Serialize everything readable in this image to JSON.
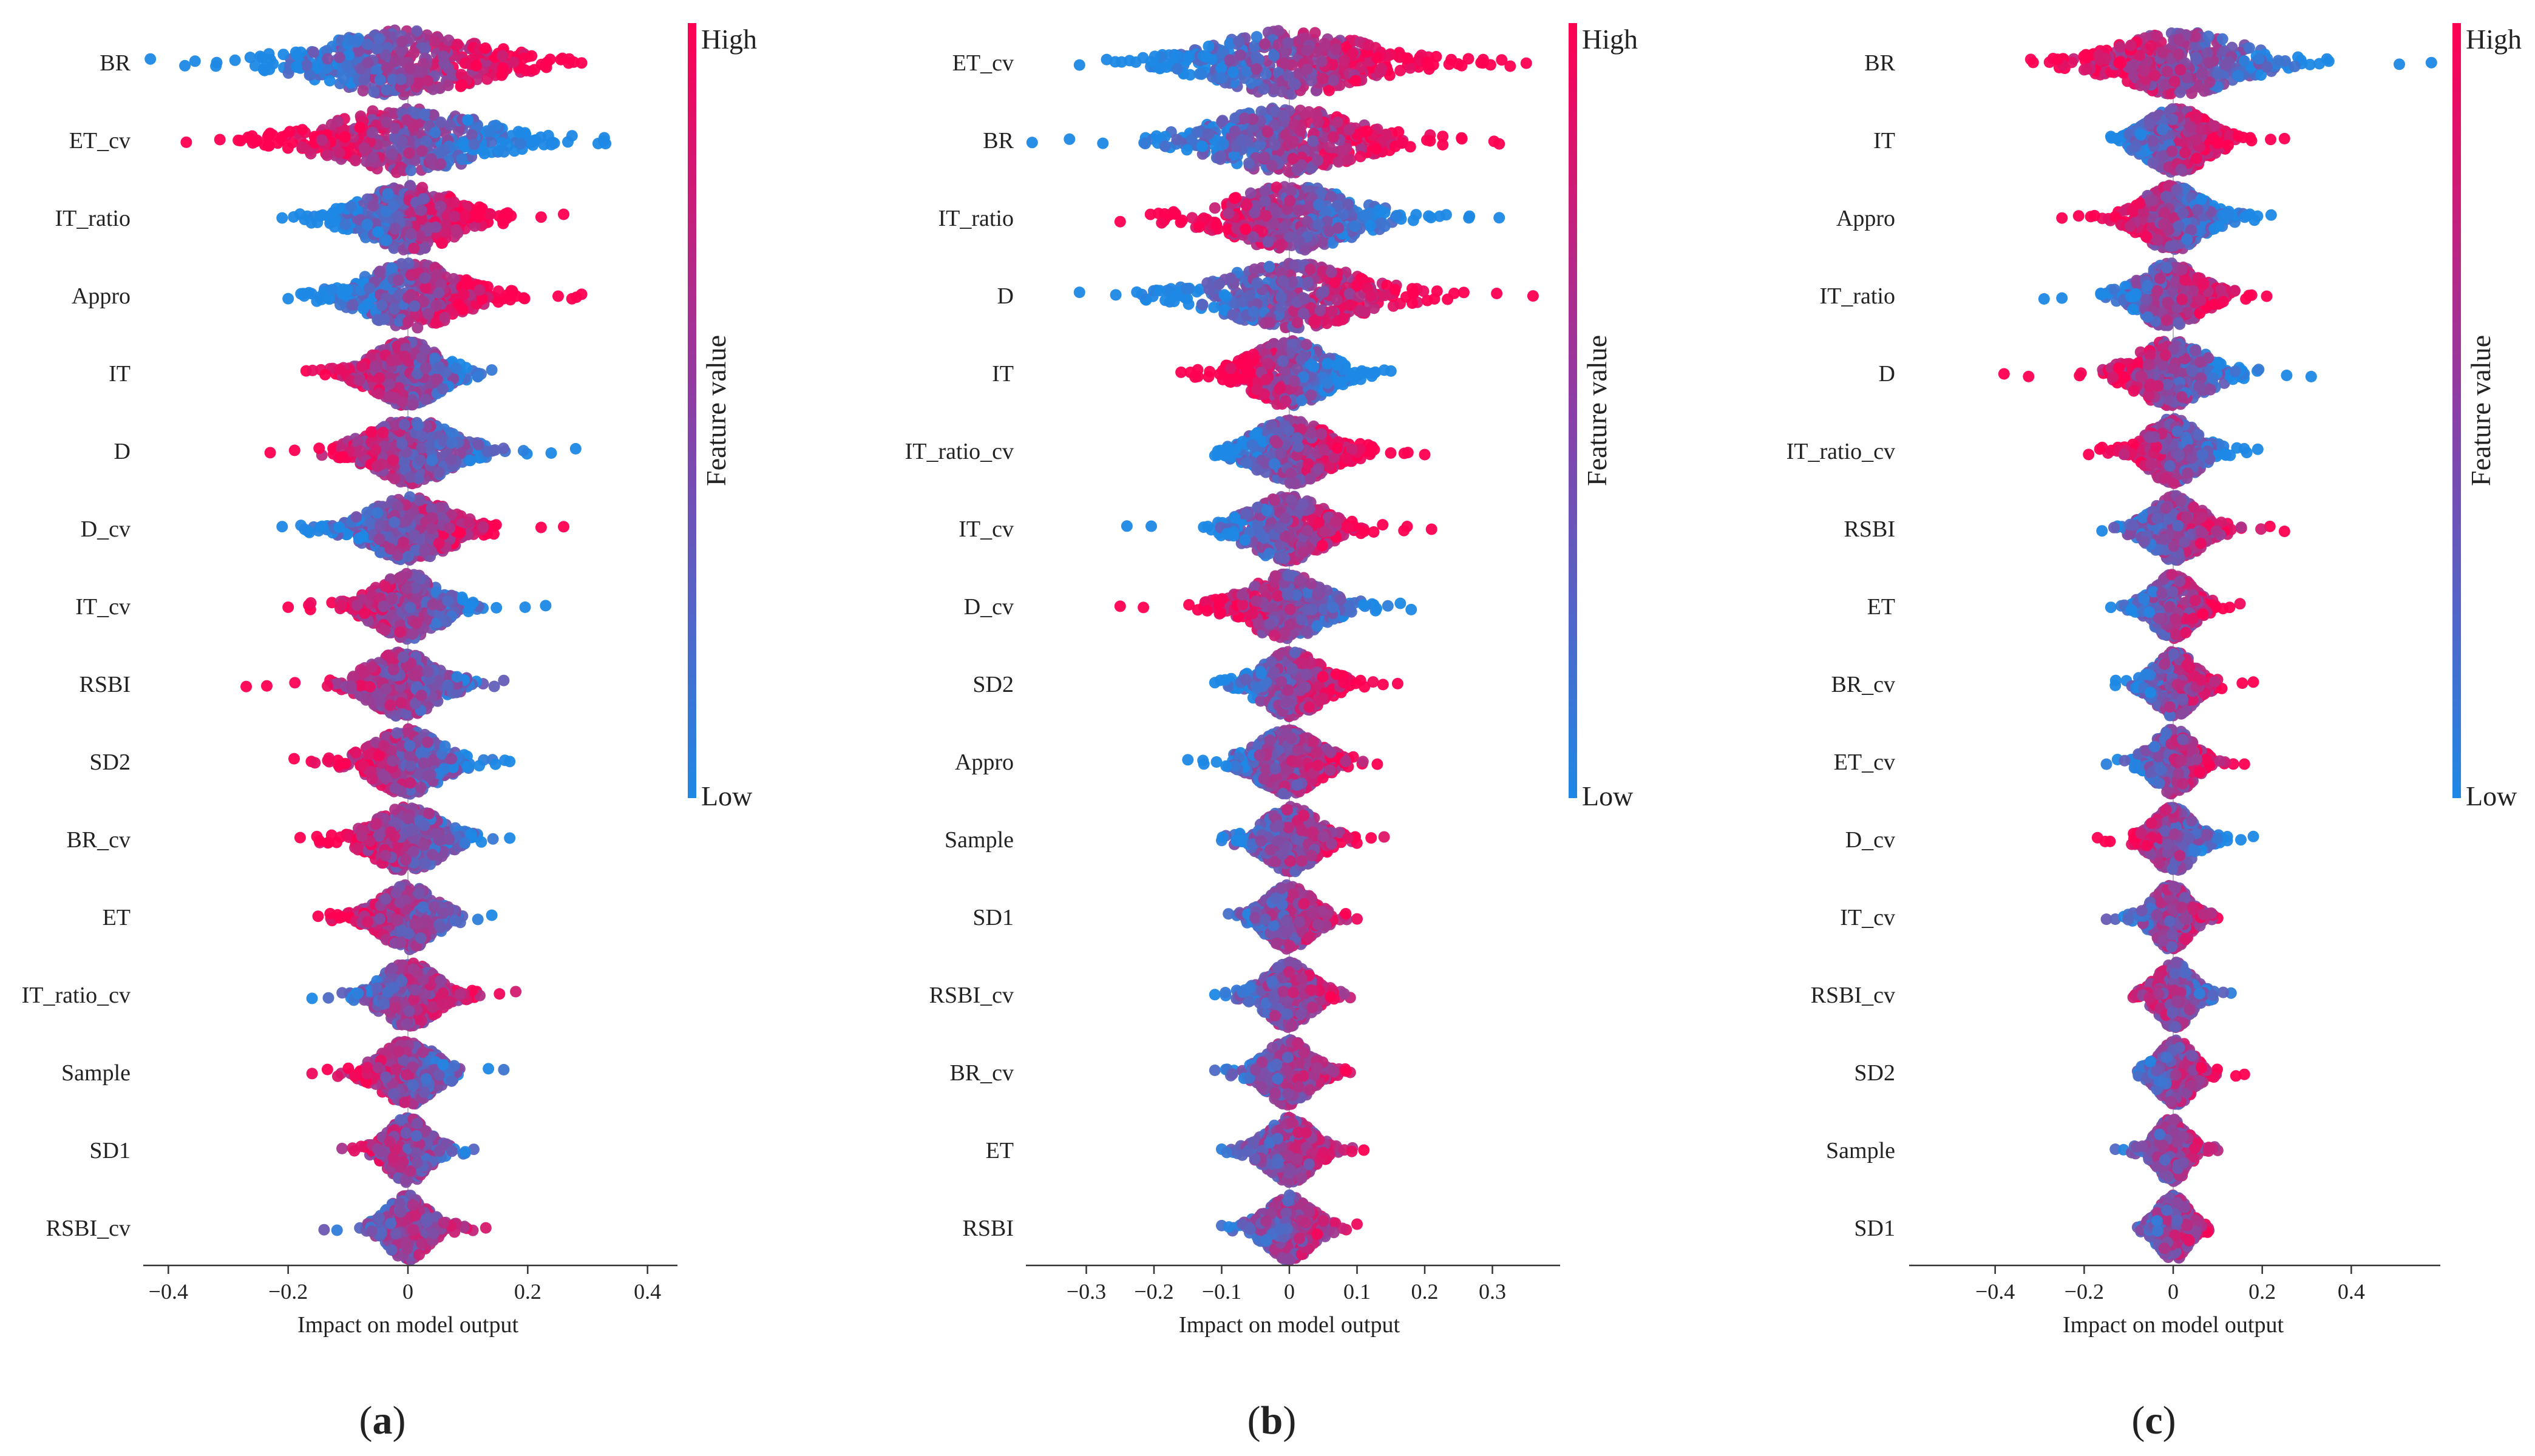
{
  "colors": {
    "high": "#ff0052",
    "low": "#1e88e5"
  },
  "colorbar": {
    "high_label": "High",
    "low_label": "Low",
    "title": "Feature value"
  },
  "chart_data": [
    {
      "type": "scatter",
      "subtype": "shap-beeswarm",
      "panel_label": "a",
      "xlabel": "Impact on model output",
      "xlim": [
        -0.45,
        0.45
      ],
      "xticks": [
        -0.4,
        -0.2,
        0,
        0.2,
        0.4
      ],
      "xtick_labels": [
        "−0.4",
        "−0.2",
        "0",
        "0.2",
        "0.4"
      ],
      "features": [
        {
          "name": "BR",
          "min": -0.43,
          "max": 0.29,
          "spread": 0.12,
          "trend": 1
        },
        {
          "name": "ET_cv",
          "min": -0.37,
          "max": 0.33,
          "spread": 0.11,
          "trend": -1
        },
        {
          "name": "IT_ratio",
          "min": -0.21,
          "max": 0.26,
          "spread": 0.07,
          "trend": 1
        },
        {
          "name": "Appro",
          "min": -0.2,
          "max": 0.29,
          "spread": 0.07,
          "trend": 1
        },
        {
          "name": "IT",
          "min": -0.17,
          "max": 0.14,
          "spread": 0.05,
          "trend": -0.5
        },
        {
          "name": "D",
          "min": -0.23,
          "max": 0.28,
          "spread": 0.06,
          "trend": -0.7
        },
        {
          "name": "D_cv",
          "min": -0.21,
          "max": 0.26,
          "spread": 0.06,
          "trend": 0.8
        },
        {
          "name": "IT_cv",
          "min": -0.2,
          "max": 0.23,
          "spread": 0.05,
          "trend": -0.8
        },
        {
          "name": "RSBI",
          "min": -0.27,
          "max": 0.16,
          "spread": 0.05,
          "trend": -0.6
        },
        {
          "name": "SD2",
          "min": -0.19,
          "max": 0.17,
          "spread": 0.05,
          "trend": -0.6
        },
        {
          "name": "BR_cv",
          "min": -0.18,
          "max": 0.17,
          "spread": 0.05,
          "trend": -0.6
        },
        {
          "name": "ET",
          "min": -0.15,
          "max": 0.14,
          "spread": 0.04,
          "trend": -0.5
        },
        {
          "name": "IT_ratio_cv",
          "min": -0.16,
          "max": 0.18,
          "spread": 0.04,
          "trend": 0.5
        },
        {
          "name": "Sample",
          "min": -0.16,
          "max": 0.16,
          "spread": 0.04,
          "trend": -0.5
        },
        {
          "name": "SD1",
          "min": -0.11,
          "max": 0.11,
          "spread": 0.03,
          "trend": -0.3
        },
        {
          "name": "RSBI_cv",
          "min": -0.14,
          "max": 0.13,
          "spread": 0.03,
          "trend": 0.3
        }
      ]
    },
    {
      "type": "scatter",
      "subtype": "shap-beeswarm",
      "panel_label": "b",
      "xlabel": "Impact on model output",
      "xlim": [
        -0.38,
        0.4
      ],
      "xticks": [
        -0.3,
        -0.2,
        -0.1,
        0,
        0.1,
        0.2,
        0.3
      ],
      "xtick_labels": [
        "−0.3",
        "−0.2",
        "−0.1",
        "0",
        "0.1",
        "0.2",
        "0.3"
      ],
      "features": [
        {
          "name": "ET_cv",
          "min": -0.31,
          "max": 0.35,
          "spread": 0.1,
          "trend": 1
        },
        {
          "name": "BR",
          "min": -0.38,
          "max": 0.31,
          "spread": 0.09,
          "trend": 1
        },
        {
          "name": "IT_ratio",
          "min": -0.25,
          "max": 0.31,
          "spread": 0.08,
          "trend": -1
        },
        {
          "name": "D",
          "min": -0.31,
          "max": 0.36,
          "spread": 0.09,
          "trend": 1
        },
        {
          "name": "IT",
          "min": -0.16,
          "max": 0.15,
          "spread": 0.05,
          "trend": -1
        },
        {
          "name": "IT_ratio_cv",
          "min": -0.11,
          "max": 0.2,
          "spread": 0.05,
          "trend": 1
        },
        {
          "name": "IT_cv",
          "min": -0.24,
          "max": 0.21,
          "spread": 0.05,
          "trend": 1
        },
        {
          "name": "D_cv",
          "min": -0.25,
          "max": 0.18,
          "spread": 0.05,
          "trend": -1
        },
        {
          "name": "SD2",
          "min": -0.11,
          "max": 0.16,
          "spread": 0.04,
          "trend": 0.8
        },
        {
          "name": "Appro",
          "min": -0.15,
          "max": 0.13,
          "spread": 0.04,
          "trend": 0.5
        },
        {
          "name": "Sample",
          "min": -0.1,
          "max": 0.14,
          "spread": 0.035,
          "trend": 0.5
        },
        {
          "name": "SD1",
          "min": -0.09,
          "max": 0.1,
          "spread": 0.03,
          "trend": 0.4
        },
        {
          "name": "RSBI_cv",
          "min": -0.11,
          "max": 0.09,
          "spread": 0.03,
          "trend": 0.4
        },
        {
          "name": "BR_cv",
          "min": -0.11,
          "max": 0.09,
          "spread": 0.03,
          "trend": 0.4
        },
        {
          "name": "ET",
          "min": -0.1,
          "max": 0.11,
          "spread": 0.03,
          "trend": 0.3
        },
        {
          "name": "RSBI",
          "min": -0.1,
          "max": 0.1,
          "spread": 0.03,
          "trend": 0.4
        }
      ]
    },
    {
      "type": "scatter",
      "subtype": "shap-beeswarm",
      "panel_label": "c",
      "xlabel": "Impact on model output",
      "xlim": [
        -0.6,
        0.6
      ],
      "xticks": [
        -0.4,
        -0.2,
        0,
        0.2,
        0.4
      ],
      "xtick_labels": [
        "−0.4",
        "−0.2",
        "0",
        "0.2",
        "0.4"
      ],
      "features": [
        {
          "name": "BR",
          "min": -0.32,
          "max": 0.58,
          "spread": 0.12,
          "trend": -1
        },
        {
          "name": "IT",
          "min": -0.14,
          "max": 0.25,
          "spread": 0.06,
          "trend": 1
        },
        {
          "name": "Appro",
          "min": -0.25,
          "max": 0.22,
          "spread": 0.06,
          "trend": -0.8
        },
        {
          "name": "IT_ratio",
          "min": -0.29,
          "max": 0.21,
          "spread": 0.06,
          "trend": 0.9
        },
        {
          "name": "D",
          "min": -0.38,
          "max": 0.31,
          "spread": 0.07,
          "trend": -1
        },
        {
          "name": "IT_ratio_cv",
          "min": -0.19,
          "max": 0.19,
          "spread": 0.05,
          "trend": -0.7
        },
        {
          "name": "RSBI",
          "min": -0.16,
          "max": 0.25,
          "spread": 0.05,
          "trend": 0.6
        },
        {
          "name": "ET",
          "min": -0.14,
          "max": 0.15,
          "spread": 0.04,
          "trend": 0.6
        },
        {
          "name": "BR_cv",
          "min": -0.13,
          "max": 0.18,
          "spread": 0.04,
          "trend": 0.7
        },
        {
          "name": "ET_cv",
          "min": -0.15,
          "max": 0.16,
          "spread": 0.04,
          "trend": 0.6
        },
        {
          "name": "D_cv",
          "min": -0.17,
          "max": 0.18,
          "spread": 0.04,
          "trend": -0.7
        },
        {
          "name": "IT_cv",
          "min": -0.15,
          "max": 0.1,
          "spread": 0.035,
          "trend": 0.4
        },
        {
          "name": "RSBI_cv",
          "min": -0.09,
          "max": 0.13,
          "spread": 0.035,
          "trend": -0.4
        },
        {
          "name": "SD2",
          "min": -0.08,
          "max": 0.16,
          "spread": 0.035,
          "trend": 0.5
        },
        {
          "name": "Sample",
          "min": -0.13,
          "max": 0.1,
          "spread": 0.03,
          "trend": 0.3
        },
        {
          "name": "SD1",
          "min": -0.08,
          "max": 0.08,
          "spread": 0.03,
          "trend": 0.3
        }
      ]
    }
  ]
}
